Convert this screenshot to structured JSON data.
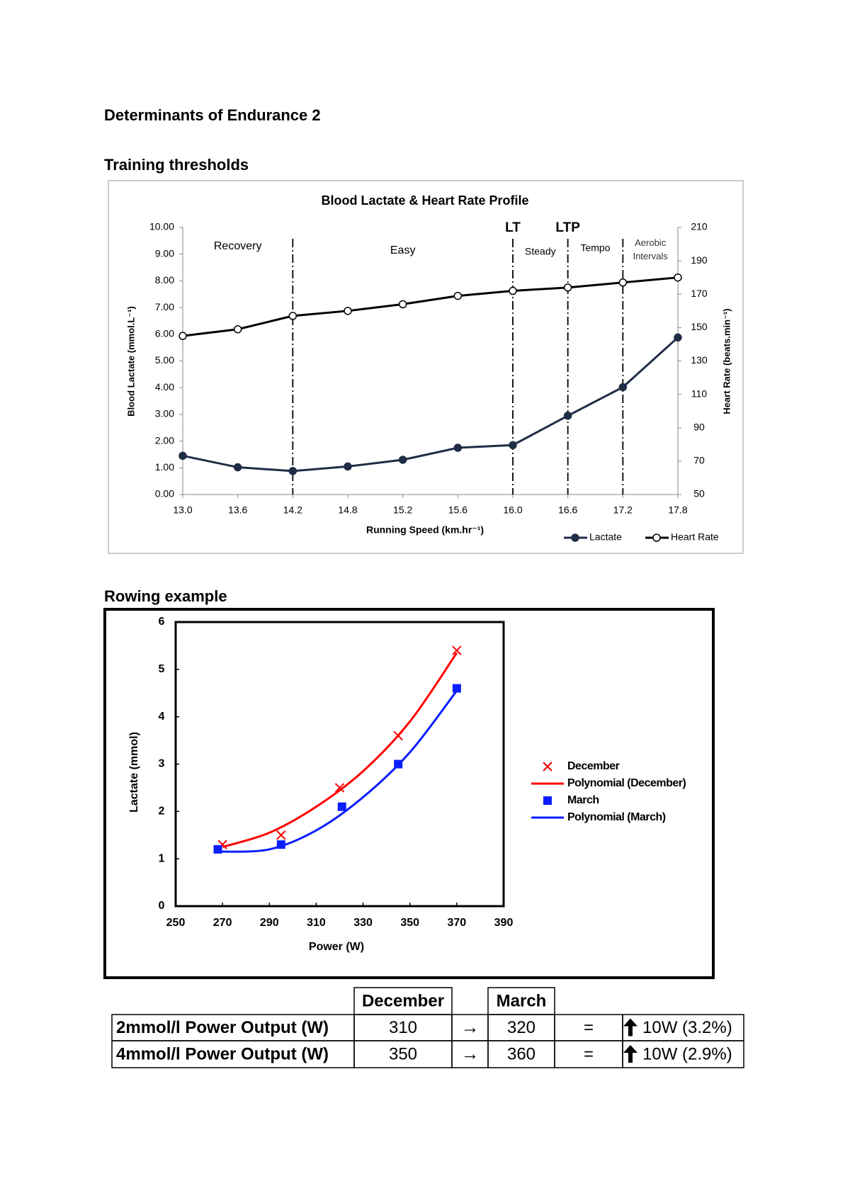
{
  "document": {
    "title": "Determinants of Endurance 2",
    "heading_1": "Training thresholds",
    "heading_2": "Rowing example"
  },
  "chart_data": [
    {
      "type": "line",
      "title": "Blood Lactate & Heart Rate Profile",
      "x_label": "Running Speed (km.hr⁻¹)",
      "y_label": "Blood Lactate (mmol.L⁻¹)",
      "y2_label": "Heart Rate (beats.min⁻¹)",
      "categories": [
        "13.0",
        "13.6",
        "14.2",
        "14.8",
        "15.2",
        "15.6",
        "16.0",
        "16.6",
        "17.2",
        "17.8"
      ],
      "series": [
        {
          "name": "Lactate",
          "color": "#1f2d45",
          "marker": "filled",
          "values": [
            1.45,
            1.02,
            0.88,
            1.05,
            1.3,
            1.75,
            1.85,
            2.95,
            4.02,
            5.88
          ]
        },
        {
          "name": "Heart Rate",
          "color": "#000000",
          "marker": "open",
          "axis": "y2",
          "values": [
            145,
            149,
            157,
            160,
            164,
            169,
            172,
            174,
            177,
            180
          ]
        }
      ],
      "ylim": [
        0,
        10
      ],
      "yticks": [
        {
          "value": 0,
          "label": "0.00"
        },
        {
          "value": 1,
          "label": "1.00"
        },
        {
          "value": 2,
          "label": "2.00"
        },
        {
          "value": 3,
          "label": "3.00"
        },
        {
          "value": 4,
          "label": "4.00"
        },
        {
          "value": 5,
          "label": "5.00"
        },
        {
          "value": 6,
          "label": "6.00"
        },
        {
          "value": 7,
          "label": "7.00"
        },
        {
          "value": 8,
          "label": "8.00"
        },
        {
          "value": 9,
          "label": "9.00"
        },
        {
          "value": 10,
          "label": "10.00"
        }
      ],
      "y2lim": [
        50,
        210
      ],
      "y2ticks": [
        50,
        70,
        90,
        110,
        130,
        150,
        170,
        190,
        210
      ],
      "dividers": [
        "14.2",
        "16.0",
        "16.6",
        "17.2"
      ],
      "zones": [
        "Recovery",
        "Easy",
        "Steady",
        "Tempo",
        "Aerobic Intervals"
      ],
      "annotations": [
        {
          "text": "LT",
          "at": "16.0",
          "color": "#e0161b"
        },
        {
          "text": "LTP",
          "at": "16.6",
          "color": "#e0161b"
        }
      ],
      "grid": false,
      "legend": "bottom-right"
    },
    {
      "type": "scatter",
      "x_label": "Power (W)",
      "y_label": "Lactate (mmol)",
      "series": [
        {
          "name": "December",
          "color": "#ff0000",
          "marker": "x",
          "x": [
            270,
            295,
            320,
            345,
            370
          ],
          "values": [
            1.3,
            1.5,
            2.5,
            3.6,
            5.4
          ]
        },
        {
          "name": "Polynomial (December)",
          "color": "#ff0000",
          "marker": "line",
          "x": [
            270,
            290,
            310,
            330,
            350,
            370
          ],
          "values": [
            1.25,
            1.55,
            2.1,
            2.85,
            3.9,
            5.35
          ]
        },
        {
          "name": "March",
          "color": "#0a1eff",
          "marker": "square",
          "x": [
            268,
            295,
            321,
            345,
            370
          ],
          "values": [
            1.2,
            1.3,
            2.1,
            3.0,
            4.6
          ]
        },
        {
          "name": "Polynomial (March)",
          "color": "#0a1eff",
          "marker": "line",
          "x": [
            268,
            290,
            310,
            330,
            350,
            370
          ],
          "values": [
            1.15,
            1.2,
            1.6,
            2.3,
            3.25,
            4.55
          ]
        }
      ],
      "xlim": [
        250,
        390
      ],
      "xticks": [
        250,
        270,
        290,
        310,
        330,
        350,
        370,
        390
      ],
      "ylim": [
        0,
        6
      ],
      "yticks": [
        0,
        1,
        2,
        3,
        4,
        5,
        6
      ],
      "grid": false,
      "legend": "right"
    }
  ],
  "table": {
    "header": [
      "December",
      "March"
    ],
    "rows": [
      [
        "2mmol/l Power Output (W)",
        310,
        "→",
        320,
        "=",
        "10W (3.2%)"
      ],
      [
        "4mmol/l Power Output (W)",
        350,
        "→",
        360,
        "=",
        "10W (2.9%)"
      ]
    ]
  }
}
